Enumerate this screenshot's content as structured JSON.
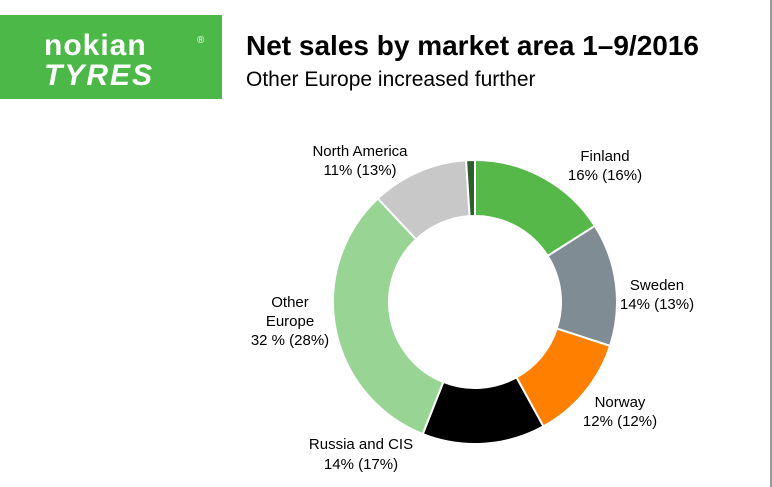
{
  "logo": {
    "brand": "nokian",
    "mark": "®",
    "sub": "TYRES"
  },
  "chart_data": {
    "type": "donut",
    "title": "Net sales by market area 1–9/2016",
    "subtitle": "Other Europe increased further",
    "categories": [
      "Finland",
      "Sweden",
      "Norway",
      "Russia and CIS",
      "Other Europe",
      "North America",
      null
    ],
    "values": [
      16,
      14,
      12,
      14,
      32,
      11,
      1
    ],
    "value_labels": [
      "16% (16%)",
      "14% (13%)",
      "12% (12%)",
      "14% (17%)",
      "32 % (28%)",
      "11% (13%)",
      null
    ],
    "colors": [
      "#56b848",
      "#7f8c93",
      "#ff7f00",
      "#000000",
      "#98d594",
      "#c8c8c8",
      "#2e5e2e"
    ]
  }
}
